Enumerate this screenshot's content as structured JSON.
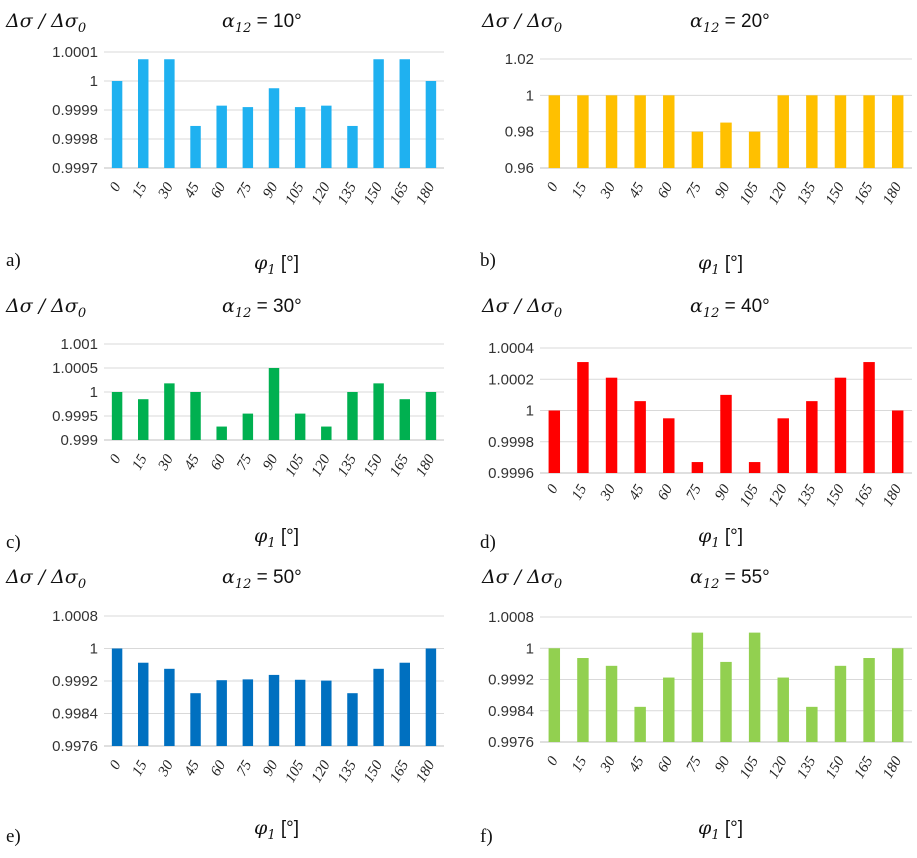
{
  "chart_data": [
    {
      "type": "bar",
      "panel_label": "a)",
      "ylabel": "Δσ / Δσ0",
      "title": "α12 = 10°",
      "xlabel": "φ1 [°]",
      "color": "#1fb1f0",
      "ylim": [
        0.9997,
        1.0001
      ],
      "yticks": [
        "0.9997",
        "0.9998",
        "0.9999",
        "1",
        "1.0001"
      ],
      "yticks_values": [
        0.9997,
        0.9998,
        0.9999,
        1,
        1.0001
      ],
      "categories": [
        "0",
        "15",
        "30",
        "45",
        "60",
        "75",
        "90",
        "105",
        "120",
        "135",
        "150",
        "165",
        "180"
      ],
      "values": [
        1.0,
        1.000075,
        1.000075,
        0.999845,
        0.999915,
        0.99991,
        0.999975,
        0.99991,
        0.999915,
        0.999845,
        1.000075,
        1.000075,
        1.0
      ]
    },
    {
      "type": "bar",
      "panel_label": "b)",
      "ylabel": "Δσ / Δσ0",
      "title": "α12 = 20°",
      "xlabel": "φ1 [°]",
      "color": "#ffc000",
      "ylim": [
        0.96,
        1.02
      ],
      "yticks": [
        "0.96",
        "0.98",
        "1",
        "1.02"
      ],
      "yticks_values": [
        0.96,
        0.98,
        1,
        1.02
      ],
      "categories": [
        "0",
        "15",
        "30",
        "45",
        "60",
        "75",
        "90",
        "105",
        "120",
        "135",
        "150",
        "165",
        "180"
      ],
      "values": [
        1.0,
        1.0,
        1.0,
        1.0,
        1.0,
        0.98,
        0.985,
        0.98,
        1.0,
        1.0,
        1.0,
        1.0,
        1.0
      ]
    },
    {
      "type": "bar",
      "panel_label": "c)",
      "ylabel": "Δσ / Δσ0",
      "title": "α12 = 30°",
      "xlabel": "φ1 [°]",
      "color": "#00b050",
      "ylim": [
        0.999,
        1.001
      ],
      "yticks": [
        "0.999",
        "0.9995",
        "1",
        "1.0005",
        "1.001"
      ],
      "yticks_values": [
        0.999,
        0.9995,
        1,
        1.0005,
        1.001
      ],
      "categories": [
        "0",
        "15",
        "30",
        "45",
        "60",
        "75",
        "90",
        "105",
        "120",
        "135",
        "150",
        "165",
        "180"
      ],
      "values": [
        1.0,
        0.99985,
        1.00018,
        1.0,
        0.99928,
        0.99955,
        1.0005,
        0.99955,
        0.99928,
        1.0,
        1.00018,
        0.99985,
        1.0
      ]
    },
    {
      "type": "bar",
      "panel_label": "d)",
      "ylabel": "Δσ / Δσ0",
      "title": "α12 = 40°",
      "xlabel": "φ1 [°]",
      "color": "#ff0000",
      "ylim": [
        0.9996,
        1.0004
      ],
      "yticks": [
        "0.9996",
        "0.9998",
        "1",
        "1.0002",
        "1.0004"
      ],
      "yticks_values": [
        0.9996,
        0.9998,
        1,
        1.0002,
        1.0004
      ],
      "categories": [
        "0",
        "15",
        "30",
        "45",
        "60",
        "75",
        "90",
        "105",
        "120",
        "135",
        "150",
        "165",
        "180"
      ],
      "values": [
        1.0,
        1.00031,
        1.00021,
        1.00006,
        0.99995,
        0.99967,
        1.0001,
        0.99967,
        0.99995,
        1.00006,
        1.00021,
        1.00031,
        1.0
      ]
    },
    {
      "type": "bar",
      "panel_label": "e)",
      "ylabel": "Δσ / Δσ0",
      "title": "α12 = 50°",
      "xlabel": "φ1 [°]",
      "color": "#0070c0",
      "ylim": [
        0.9976,
        1.0008
      ],
      "yticks": [
        "0.9976",
        "0.9984",
        "0.9992",
        "1",
        "1.0008"
      ],
      "yticks_values": [
        0.9976,
        0.9984,
        0.9992,
        1,
        1.0008
      ],
      "categories": [
        "0",
        "15",
        "30",
        "45",
        "60",
        "75",
        "90",
        "105",
        "120",
        "135",
        "150",
        "165",
        "180"
      ],
      "values": [
        1.0,
        0.99965,
        0.9995,
        0.9989,
        0.99922,
        0.99924,
        0.99935,
        0.99923,
        0.99921,
        0.9989,
        0.9995,
        0.99965,
        1.0
      ]
    },
    {
      "type": "bar",
      "panel_label": "f)",
      "ylabel": "Δσ / Δσ0",
      "title": "α12 = 55°",
      "xlabel": "φ1 [°]",
      "color": "#92d050",
      "ylim": [
        0.9976,
        1.0008
      ],
      "yticks": [
        "0.9976",
        "0.9984",
        "0.9992",
        "1",
        "1.0008"
      ],
      "yticks_values": [
        0.9976,
        0.9984,
        0.9992,
        1,
        1.0008
      ],
      "categories": [
        "0",
        "15",
        "30",
        "45",
        "60",
        "75",
        "90",
        "105",
        "120",
        "135",
        "150",
        "165",
        "180"
      ],
      "values": [
        1.0,
        0.99975,
        0.99955,
        0.9985,
        0.99925,
        1.0004,
        0.99965,
        1.0004,
        0.99925,
        0.9985,
        0.99955,
        0.99975,
        1.0
      ]
    }
  ]
}
